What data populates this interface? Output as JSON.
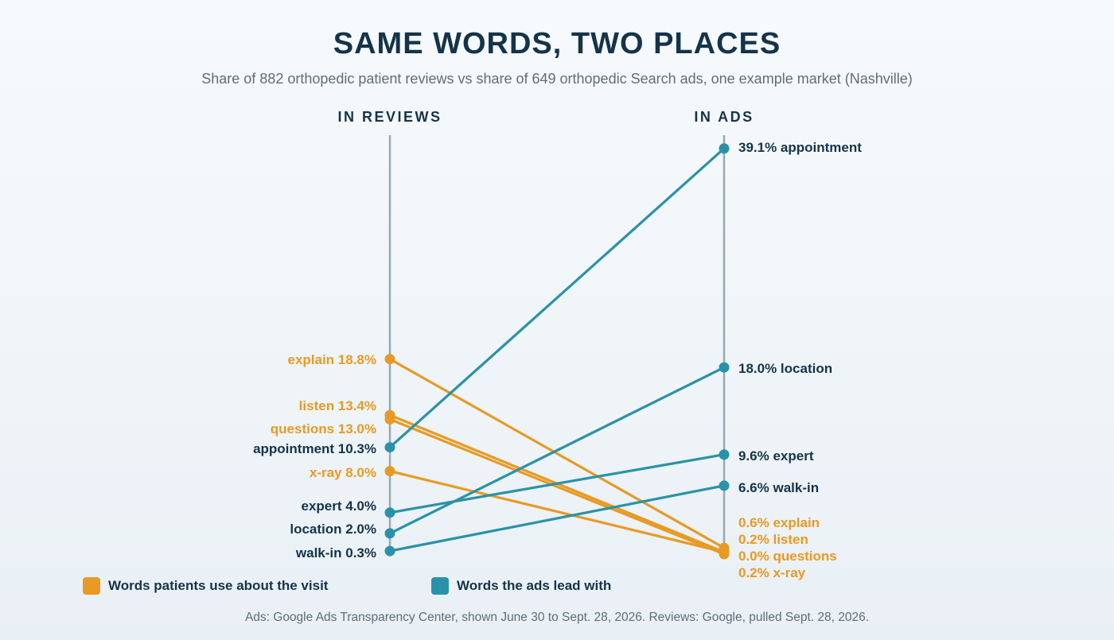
{
  "title": "SAME WORDS, TWO PLACES",
  "subtitle": "Share of 882 orthopedic patient reviews vs share of 649 orthopedic Search ads, one example market (Nashville)",
  "source": "Ads: Google Ads Transparency Center, shown June 30 to Sept. 28, 2026. Reviews: Google, pulled Sept. 28, 2026.",
  "colors": {
    "orange": "#e89a24",
    "teal": "#2a92a8",
    "axis": "#9aa8b1",
    "dark": "#14344a"
  },
  "chart_data": {
    "type": "slope",
    "x": [
      "IN REVIEWS",
      "IN ADS"
    ],
    "unit": "%",
    "ylim": [
      0,
      40
    ],
    "grid": false,
    "legend_placement": "bottom-left",
    "groups": [
      {
        "name": "Words patients use about the visit",
        "color": "#e89a24"
      },
      {
        "name": "Words the ads lead with",
        "color": "#2a92a8"
      }
    ],
    "series": [
      {
        "name": "explain",
        "group": 0,
        "values": [
          18.8,
          0.6
        ],
        "left_label": "explain 18.8%",
        "right_label": "0.6% explain"
      },
      {
        "name": "listen",
        "group": 0,
        "values": [
          13.4,
          0.2
        ],
        "left_label": "listen 13.4%",
        "right_label": "0.2% listen"
      },
      {
        "name": "questions",
        "group": 0,
        "values": [
          13.0,
          0.0
        ],
        "left_label": "questions 13.0%",
        "right_label": "0.0% questions"
      },
      {
        "name": "x-ray",
        "group": 0,
        "values": [
          8.0,
          0.2
        ],
        "left_label": "x-ray 8.0%",
        "right_label": "0.2% x-ray"
      },
      {
        "name": "appointment",
        "group": 1,
        "values": [
          10.3,
          39.1
        ],
        "left_label": "appointment 10.3%",
        "right_label": "39.1% appointment"
      },
      {
        "name": "location",
        "group": 1,
        "values": [
          2.0,
          18.0
        ],
        "left_label": "location 2.0%",
        "right_label": "18.0% location"
      },
      {
        "name": "expert",
        "group": 1,
        "values": [
          4.0,
          9.6
        ],
        "left_label": "expert 4.0%",
        "right_label": "9.6% expert"
      },
      {
        "name": "walk-in",
        "group": 1,
        "values": [
          0.3,
          6.6
        ],
        "left_label": "walk-in 0.3%",
        "right_label": "6.6% walk-in"
      }
    ]
  }
}
